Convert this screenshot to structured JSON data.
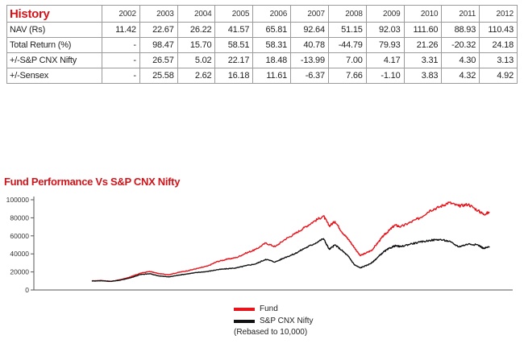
{
  "history": {
    "title": "History",
    "years": [
      "2002",
      "2003",
      "2004",
      "2005",
      "2006",
      "2007",
      "2008",
      "2009",
      "2010",
      "2011",
      "2012"
    ],
    "rows": [
      {
        "label": "NAV (Rs)",
        "values": [
          "11.42",
          "22.67",
          "26.22",
          "41.57",
          "65.81",
          "92.64",
          "51.15",
          "92.03",
          "111.60",
          "88.93",
          "110.43"
        ]
      },
      {
        "label": "Total Return (%)",
        "values": [
          "-",
          "98.47",
          "15.70",
          "58.51",
          "58.31",
          "40.78",
          "-44.79",
          "79.93",
          "21.26",
          "-20.32",
          "24.18"
        ]
      },
      {
        "label": "+/-S&P CNX Nifty",
        "values": [
          "-",
          "26.57",
          "5.02",
          "22.17",
          "18.48",
          "-13.99",
          "7.00",
          "4.17",
          "3.31",
          "4.30",
          "3.13"
        ]
      },
      {
        "label": "+/-Sensex",
        "values": [
          "-",
          "25.58",
          "2.62",
          "16.18",
          "11.61",
          "-6.37",
          "7.66",
          "-1.10",
          "3.83",
          "4.32",
          "4.92"
        ]
      }
    ]
  },
  "chart": {
    "title": "Fund Performance Vs S&P CNX Nifty",
    "legend_note": "(Rebased to 10,000)"
  },
  "chart_data": {
    "type": "line",
    "x_label": "",
    "y_label": "",
    "ylim": [
      0,
      100000
    ],
    "y_ticks": [
      0,
      20000,
      40000,
      60000,
      80000,
      100000
    ],
    "y_tick_labels": [
      "0",
      "20000",
      "40000",
      "60000",
      "80000",
      "100000"
    ],
    "grid": false,
    "legend_position": "bottom-center",
    "x": [
      2002.0,
      2002.25,
      2002.5,
      2002.75,
      2003.0,
      2003.25,
      2003.5,
      2003.75,
      2004.0,
      2004.25,
      2004.5,
      2004.75,
      2005.0,
      2005.25,
      2005.5,
      2005.75,
      2006.0,
      2006.25,
      2006.5,
      2006.75,
      2007.0,
      2007.25,
      2007.5,
      2007.75,
      2008.0,
      2008.15,
      2008.3,
      2008.5,
      2008.65,
      2008.8,
      2008.95,
      2009.1,
      2009.25,
      2009.4,
      2009.55,
      2009.7,
      2009.85,
      2010.0,
      2010.25,
      2010.5,
      2010.75,
      2011.0,
      2011.25,
      2011.5,
      2011.75,
      2012.0,
      2012.15,
      2012.3
    ],
    "series": [
      {
        "name": "Fund",
        "color": "#e8141c",
        "values": [
          10000,
          10500,
          9600,
          11500,
          14500,
          18500,
          20500,
          18000,
          17000,
          19500,
          21500,
          24000,
          26500,
          31500,
          34000,
          36000,
          41000,
          45000,
          52000,
          48000,
          56000,
          62000,
          69000,
          76000,
          82000,
          71000,
          76000,
          63000,
          56000,
          47000,
          38000,
          41000,
          44000,
          52000,
          60000,
          66000,
          72000,
          70000,
          75000,
          80000,
          88000,
          92000,
          97000,
          93000,
          95000,
          88000,
          84000,
          86000
        ]
      },
      {
        "name": "S&P CNX Nifty",
        "color": "#111111",
        "values": [
          10000,
          10200,
          9500,
          11000,
          13500,
          17000,
          18000,
          15500,
          14500,
          16500,
          18000,
          19500,
          20500,
          22500,
          23500,
          24500,
          27000,
          29000,
          34000,
          31000,
          36000,
          40000,
          46000,
          51000,
          57000,
          45000,
          50000,
          43000,
          37000,
          28000,
          24500,
          27000,
          30000,
          36000,
          42000,
          46000,
          49000,
          48000,
          51000,
          53000,
          55000,
          56000,
          54000,
          48000,
          51000,
          50000,
          46000,
          48000
        ]
      }
    ]
  }
}
